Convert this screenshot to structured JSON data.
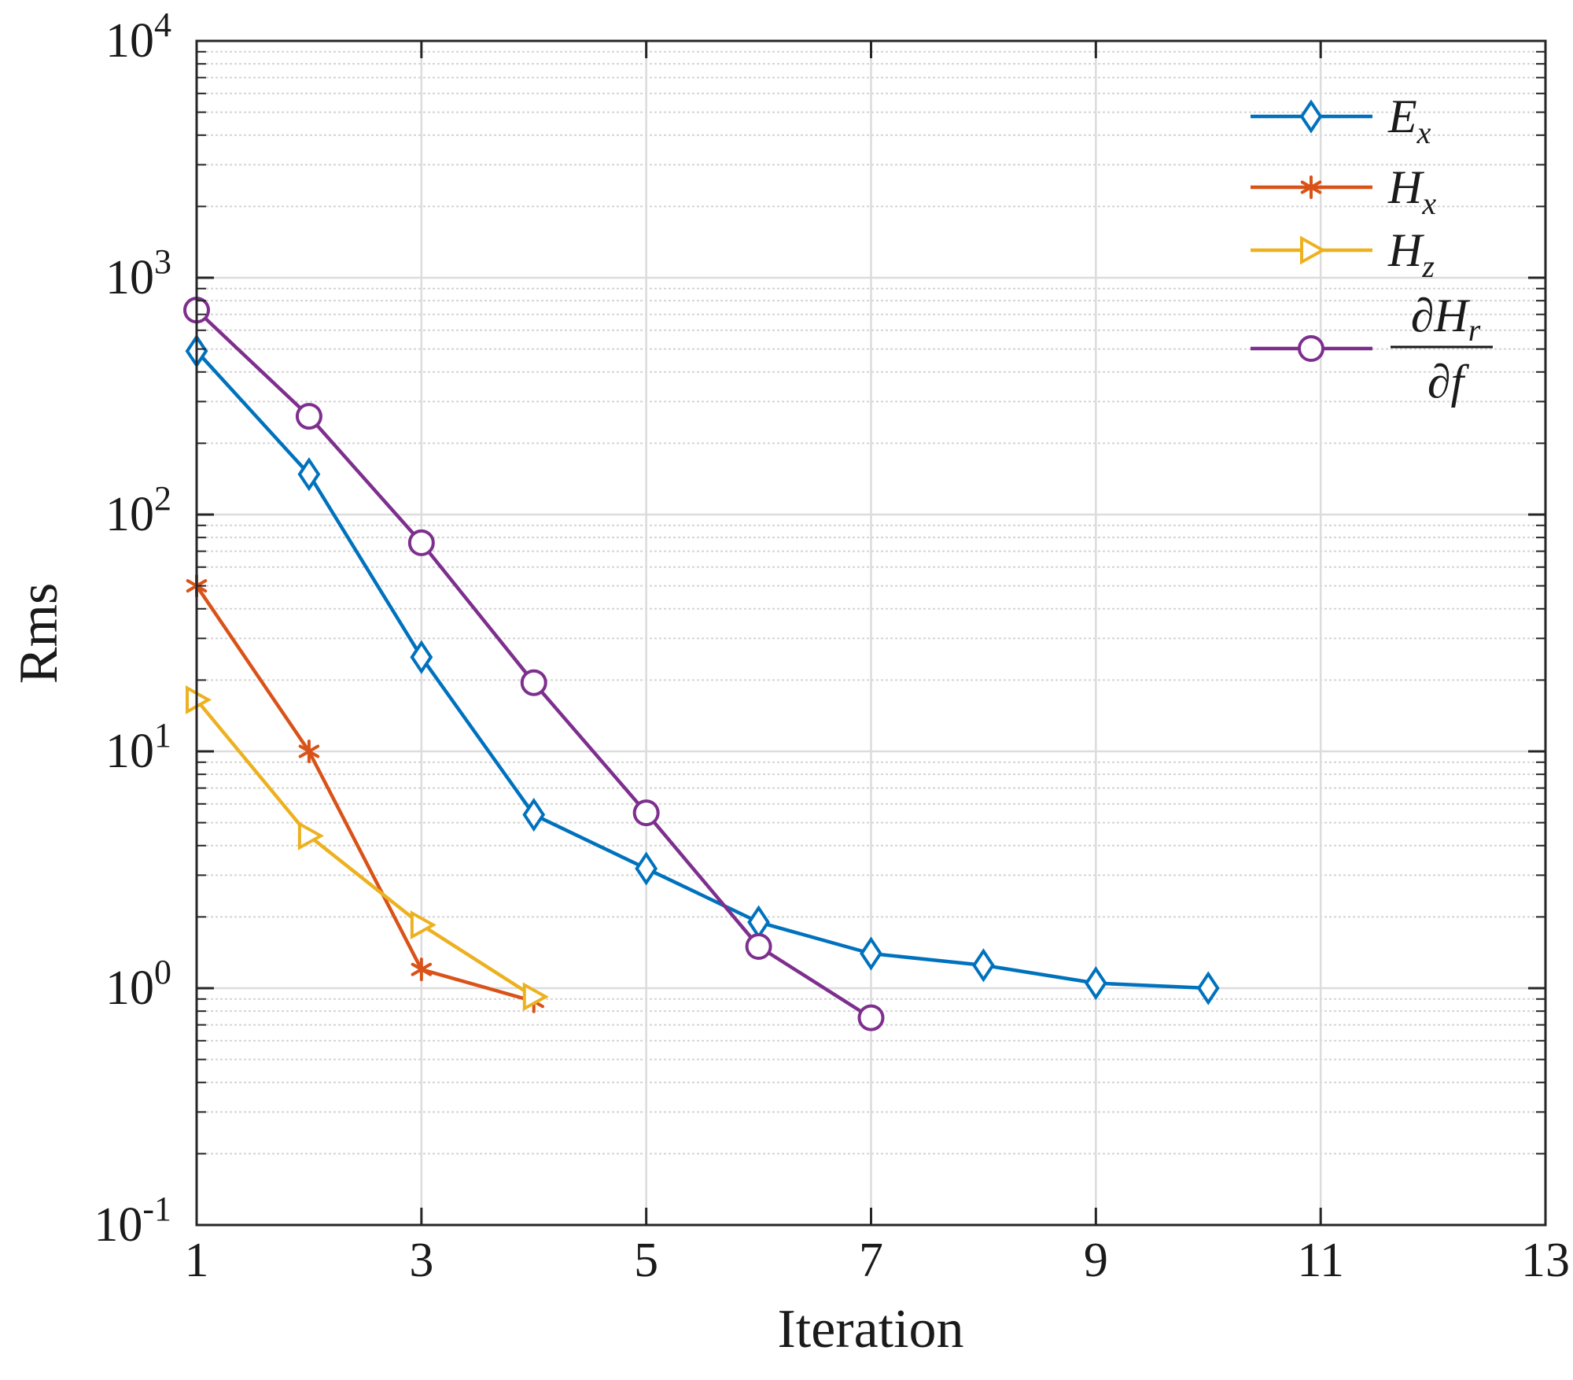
{
  "chart_data": {
    "type": "line",
    "xlabel": "Iteration",
    "ylabel": "Rms",
    "xlim": [
      1,
      13
    ],
    "ylim": [
      0.1,
      10000
    ],
    "yscale": "log",
    "grid": true,
    "legend_position": "top-right",
    "x_ticks": [
      1,
      3,
      5,
      7,
      9,
      11,
      13
    ],
    "y_ticks": [
      {
        "value": 0.1,
        "base": "10",
        "exp": "-1"
      },
      {
        "value": 1,
        "base": "10",
        "exp": "0"
      },
      {
        "value": 10,
        "base": "10",
        "exp": "1"
      },
      {
        "value": 100,
        "base": "10",
        "exp": "2"
      },
      {
        "value": 1000,
        "base": "10",
        "exp": "3"
      },
      {
        "value": 10000,
        "base": "10",
        "exp": "4"
      }
    ],
    "series": [
      {
        "name": "E_x",
        "legend": {
          "main": "E",
          "sub": "x"
        },
        "color": "#0072BD",
        "marker": "diamond",
        "x": [
          1,
          2,
          3,
          4,
          5,
          6,
          7,
          8,
          9,
          10
        ],
        "y": [
          490,
          148,
          25,
          5.4,
          3.2,
          1.9,
          1.4,
          1.25,
          1.05,
          1.0
        ]
      },
      {
        "name": "H_x",
        "legend": {
          "main": "H",
          "sub": "x"
        },
        "color": "#D95319",
        "marker": "asterisk",
        "x": [
          1,
          2,
          3,
          4
        ],
        "y": [
          50,
          10,
          1.2,
          0.88
        ]
      },
      {
        "name": "H_z",
        "legend": {
          "main": "H",
          "sub": "z"
        },
        "color": "#EDB120",
        "marker": "triangle-right",
        "x": [
          1,
          2,
          3,
          4
        ],
        "y": [
          16.5,
          4.4,
          1.85,
          0.92
        ]
      },
      {
        "name": "∂H_r/∂f",
        "legend": {
          "numerator": "∂H",
          "numerator_sub": "r",
          "denominator": "∂f"
        },
        "color": "#7E2F8E",
        "marker": "circle",
        "x": [
          1,
          2,
          3,
          4,
          5,
          6,
          7
        ],
        "y": [
          730,
          260,
          76,
          19.5,
          5.5,
          1.5,
          0.75
        ]
      }
    ]
  }
}
